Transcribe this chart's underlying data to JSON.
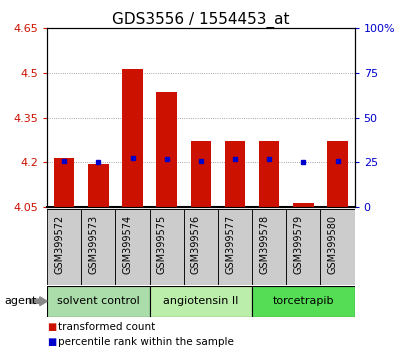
{
  "title": "GDS3556 / 1554453_at",
  "categories": [
    "GSM399572",
    "GSM399573",
    "GSM399574",
    "GSM399575",
    "GSM399576",
    "GSM399577",
    "GSM399578",
    "GSM399579",
    "GSM399580"
  ],
  "bar_bottom": 4.05,
  "bar_tops": [
    4.215,
    4.193,
    4.515,
    4.435,
    4.272,
    4.272,
    4.272,
    4.065,
    4.272
  ],
  "blue_dots": [
    4.205,
    4.202,
    4.216,
    4.21,
    4.205,
    4.21,
    4.21,
    4.2,
    4.205
  ],
  "ylim": [
    4.05,
    4.65
  ],
  "yticks_left": [
    4.05,
    4.2,
    4.35,
    4.5,
    4.65
  ],
  "yticks_right_vals": [
    0,
    25,
    50,
    75,
    100
  ],
  "yticks_right_labels": [
    "0",
    "25",
    "50",
    "75",
    "100%"
  ],
  "bar_color": "#cc1100",
  "dot_color": "#0000cc",
  "grid_color": "#888888",
  "agent_groups": [
    {
      "label": "solvent control",
      "indices": [
        0,
        1,
        2
      ],
      "color": "#aaddaa"
    },
    {
      "label": "angiotensin II",
      "indices": [
        3,
        4,
        5
      ],
      "color": "#bbeeaa"
    },
    {
      "label": "torcetrapib",
      "indices": [
        6,
        7,
        8
      ],
      "color": "#55dd55"
    }
  ],
  "agent_label": "agent",
  "legend_items": [
    {
      "label": "transformed count",
      "color": "#cc1100"
    },
    {
      "label": "percentile rank within the sample",
      "color": "#0000cc"
    }
  ],
  "title_fontsize": 11,
  "axis_label_color_left": "#cc1100",
  "axis_label_color_right": "#0000cc",
  "tick_label_fontsize": 8,
  "bar_width": 0.6,
  "xtick_bg_color": "#cccccc",
  "xtick_fontsize": 7
}
